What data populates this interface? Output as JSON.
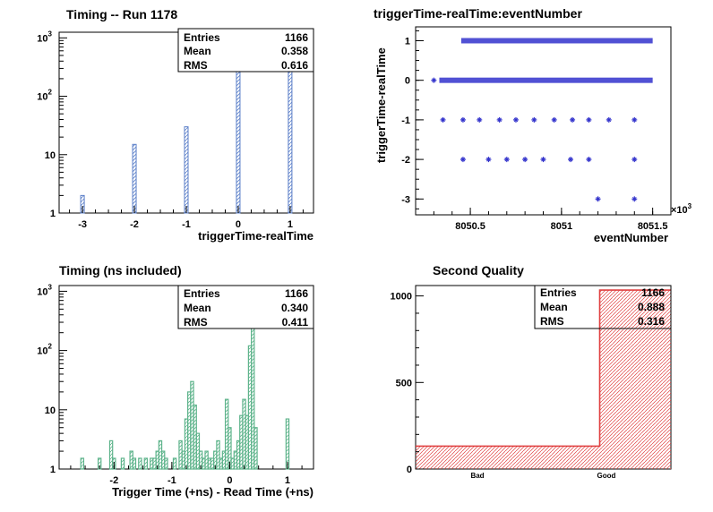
{
  "colors": {
    "blue": "#5b7fc8",
    "green": "#5fb48c",
    "red": "#e04040",
    "marker": "#3333cc"
  },
  "chart_data": [
    {
      "type": "bar",
      "title": "Timing -- Run 1178",
      "xlabel": "triggerTime-realTime",
      "ylabel": "",
      "xlim": [
        -3.45,
        1.45
      ],
      "ylim_log": [
        1,
        1250
      ],
      "log_y": true,
      "xticks": [
        "-3",
        "-2",
        "-1",
        "0",
        "1"
      ],
      "yticks": [
        "1",
        "10",
        "10",
        "10"
      ],
      "ytick_exp": [
        "",
        "",
        "2",
        "3"
      ],
      "bars": [
        {
          "x": -3,
          "value": 2
        },
        {
          "x": -2,
          "value": 15
        },
        {
          "x": -1,
          "value": 30
        },
        {
          "x": 0,
          "value": 600
        },
        {
          "x": 1,
          "value": 518
        }
      ],
      "stats": [
        {
          "label": "Entries",
          "value": "1166"
        },
        {
          "label": "Mean",
          "value": "0.358"
        },
        {
          "label": "RMS",
          "value": "0.616"
        }
      ]
    },
    {
      "type": "scatter",
      "title": "triggerTime-realTime:eventNumber",
      "xlabel": "eventNumber",
      "ylabel": "triggerTime-realTime",
      "xlim": [
        8050.2,
        8051.6
      ],
      "ylim": [
        -3.4,
        1.35
      ],
      "xticks": [
        "8050.5",
        "8051",
        "8051.5"
      ],
      "yticks": [
        "1",
        "0",
        "-1",
        "-2",
        "-3"
      ],
      "x_multiplier": "×10",
      "x_multiplier_exp": "3",
      "bands": [
        {
          "y": 1,
          "x_from": 8050.45,
          "x_to": 8051.5
        },
        {
          "y": 0,
          "x_from": 8050.33,
          "x_to": 8051.5
        }
      ],
      "points": [
        {
          "x": 8050.3,
          "y": 0
        },
        {
          "x": 8050.35,
          "y": -1
        },
        {
          "x": 8050.46,
          "y": -1
        },
        {
          "x": 8050.55,
          "y": -1
        },
        {
          "x": 8050.66,
          "y": -1
        },
        {
          "x": 8050.75,
          "y": -1
        },
        {
          "x": 8050.85,
          "y": -1
        },
        {
          "x": 8050.96,
          "y": -1
        },
        {
          "x": 8051.06,
          "y": -1
        },
        {
          "x": 8051.15,
          "y": -1
        },
        {
          "x": 8051.26,
          "y": -1
        },
        {
          "x": 8051.4,
          "y": -1
        },
        {
          "x": 8050.46,
          "y": -2
        },
        {
          "x": 8050.6,
          "y": -2
        },
        {
          "x": 8050.7,
          "y": -2
        },
        {
          "x": 8050.8,
          "y": -2
        },
        {
          "x": 8050.9,
          "y": -2
        },
        {
          "x": 8051.05,
          "y": -2
        },
        {
          "x": 8051.15,
          "y": -2
        },
        {
          "x": 8051.4,
          "y": -2
        },
        {
          "x": 8051.2,
          "y": -3
        },
        {
          "x": 8051.4,
          "y": -3
        }
      ]
    },
    {
      "type": "bar",
      "title": "Timing (ns included)",
      "xlabel": "Trigger Time (+ns) - Read Time (+ns)",
      "ylabel": "",
      "xlim": [
        -2.95,
        1.45
      ],
      "ylim_log": [
        1,
        1250
      ],
      "log_y": true,
      "xticks": [
        "-2",
        "-1",
        "0",
        "1"
      ],
      "yticks": [
        "1",
        "10",
        "10",
        "10"
      ],
      "ytick_exp": [
        "",
        "",
        "2",
        "3"
      ],
      "bin_width": 0.05,
      "bins": [
        {
          "x": -2.55,
          "value": 1
        },
        {
          "x": -2.25,
          "value": 1
        },
        {
          "x": -2.05,
          "value": 3
        },
        {
          "x": -2.0,
          "value": 1
        },
        {
          "x": -1.85,
          "value": 1
        },
        {
          "x": -1.7,
          "value": 2
        },
        {
          "x": -1.65,
          "value": 1
        },
        {
          "x": -1.55,
          "value": 1
        },
        {
          "x": -1.45,
          "value": 1
        },
        {
          "x": -1.35,
          "value": 1
        },
        {
          "x": -1.3,
          "value": 1
        },
        {
          "x": -1.25,
          "value": 2
        },
        {
          "x": -1.2,
          "value": 3
        },
        {
          "x": -1.15,
          "value": 2
        },
        {
          "x": -1.1,
          "value": 1
        },
        {
          "x": -0.95,
          "value": 1
        },
        {
          "x": -0.85,
          "value": 3
        },
        {
          "x": -0.8,
          "value": 2
        },
        {
          "x": -0.75,
          "value": 7
        },
        {
          "x": -0.7,
          "value": 20
        },
        {
          "x": -0.65,
          "value": 30
        },
        {
          "x": -0.6,
          "value": 12
        },
        {
          "x": -0.55,
          "value": 4
        },
        {
          "x": -0.5,
          "value": 2
        },
        {
          "x": -0.45,
          "value": 1
        },
        {
          "x": -0.4,
          "value": 2
        },
        {
          "x": -0.35,
          "value": 1
        },
        {
          "x": -0.3,
          "value": 1
        },
        {
          "x": -0.25,
          "value": 2
        },
        {
          "x": -0.2,
          "value": 3
        },
        {
          "x": -0.15,
          "value": 1
        },
        {
          "x": -0.1,
          "value": 2
        },
        {
          "x": -0.05,
          "value": 15
        },
        {
          "x": 0.0,
          "value": 5
        },
        {
          "x": 0.05,
          "value": 1
        },
        {
          "x": 0.1,
          "value": 2
        },
        {
          "x": 0.15,
          "value": 3
        },
        {
          "x": 0.2,
          "value": 8
        },
        {
          "x": 0.25,
          "value": 15
        },
        {
          "x": 0.3,
          "value": 8
        },
        {
          "x": 0.35,
          "value": 120
        },
        {
          "x": 0.4,
          "value": 700
        },
        {
          "x": 0.45,
          "value": 5
        },
        {
          "x": 1.0,
          "value": 7
        }
      ],
      "stats": [
        {
          "label": "Entries",
          "value": "1166"
        },
        {
          "label": "Mean",
          "value": "0.340"
        },
        {
          "label": "RMS",
          "value": "0.411"
        }
      ]
    },
    {
      "type": "bar",
      "title": "Second Quality",
      "xlabel": "",
      "ylabel": "",
      "categories": [
        "Bad",
        "Good"
      ],
      "values": [
        132,
        1034
      ],
      "ylim": [
        0,
        1060
      ],
      "yticks": [
        "0",
        "500",
        "1000"
      ],
      "stats": [
        {
          "label": "Entries",
          "value": "1166"
        },
        {
          "label": "Mean",
          "value": "0.888"
        },
        {
          "label": "RMS",
          "value": "0.316"
        }
      ]
    }
  ]
}
